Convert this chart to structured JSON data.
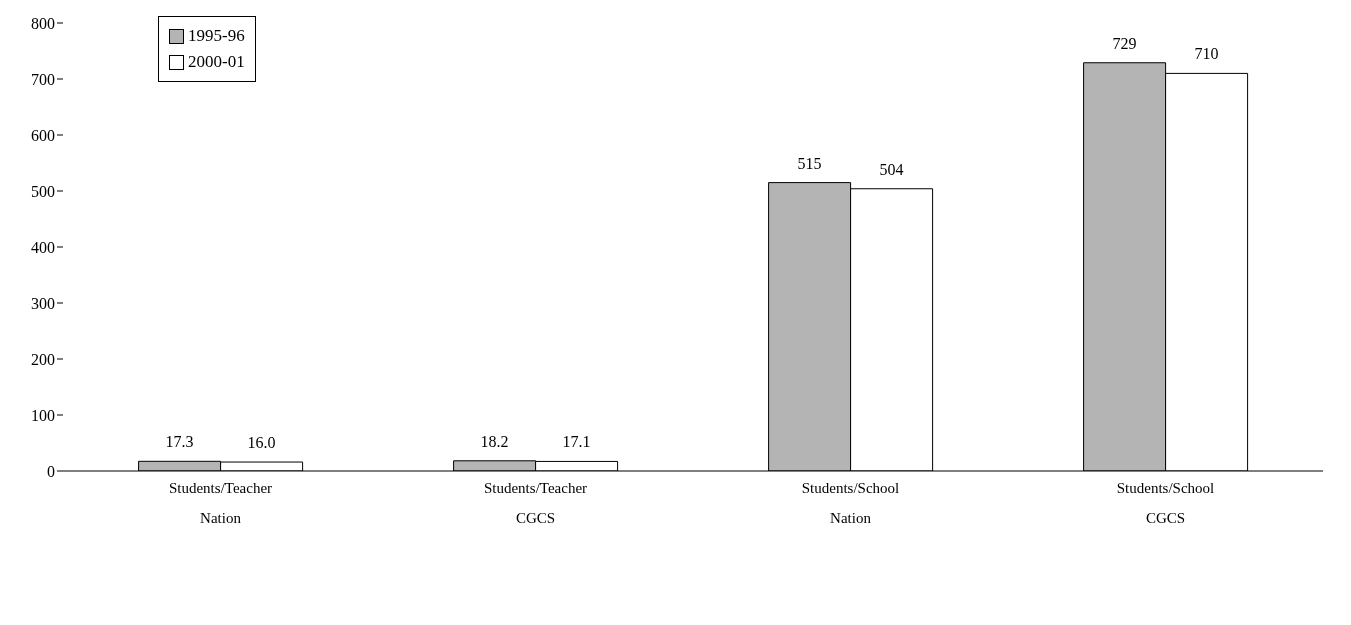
{
  "chart_data": {
    "type": "bar",
    "categories": [
      "Students/Teacher\nNation",
      "Students/Teacher\nCGCS",
      "Students/School\nNation",
      "Students/School\nCGCS"
    ],
    "series": [
      {
        "name": "1995-96",
        "color": "#b4b4b4",
        "values": [
          17.3,
          18.2,
          515,
          729
        ],
        "value_labels": [
          "17.3",
          "18.2",
          "515",
          "729"
        ]
      },
      {
        "name": "2000-01",
        "color": "#ffffff",
        "values": [
          16.0,
          17.1,
          504,
          710
        ],
        "value_labels": [
          "16.0",
          "17.1",
          "504",
          "710"
        ]
      }
    ],
    "ylim": [
      0,
      800
    ],
    "yticks": [
      0,
      100,
      200,
      300,
      400,
      500,
      600,
      700,
      800
    ],
    "grid": false,
    "legend": "top left"
  }
}
